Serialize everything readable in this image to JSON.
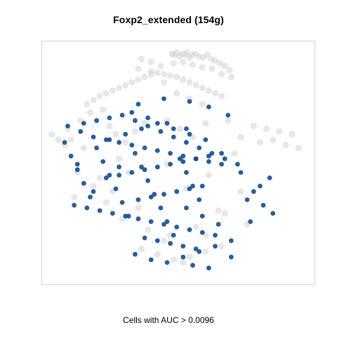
{
  "chart_data": {
    "type": "scatter",
    "title": "Foxp2_extended (154g)",
    "xlabel": "Cells with AUC > 0.0096",
    "ylabel": "",
    "grid": false,
    "legend": "none",
    "series": [
      {
        "role": "cells below threshold",
        "color": "#d3d3d3",
        "x": [
          0.45,
          0.52,
          0.6,
          0.68,
          0.76,
          0.85,
          0.92,
          1.0,
          1.08,
          1.18,
          1.3,
          1.42,
          1.55,
          1.68,
          1.8,
          1.95,
          2.1,
          2.25,
          0.5,
          0.8,
          1.1,
          1.4,
          1.7,
          2.0,
          2.3,
          -0.5,
          -0.2,
          0.1,
          -2.2,
          -2.0,
          -1.8,
          -1.6,
          -1.4,
          -1.2,
          -1.0,
          -0.8,
          -0.6,
          -0.4,
          -0.2,
          0.0,
          0.2,
          0.4,
          0.6,
          0.8,
          1.0,
          1.2,
          1.4,
          1.6,
          1.8,
          2.0,
          -0.6,
          -0.2,
          0.2,
          0.6,
          1.0,
          1.4,
          -2.8,
          -2.7,
          -2.4,
          -2.1,
          -1.7,
          -1.5,
          -1.3,
          -1.0,
          -0.7,
          -0.4,
          0.3,
          0.7,
          1.1,
          1.5,
          2.2,
          2.6,
          3.0,
          3.4,
          3.8,
          4.2,
          4.4,
          3.2,
          3.6,
          4.0,
          2.4,
          -2.9,
          -3.1,
          -3.3,
          -2.5,
          -2.0,
          -1.6,
          -1.1,
          -0.3,
          0.4,
          1.2,
          1.9,
          2.6,
          -0.5,
          0.0,
          0.5,
          1.0,
          1.5,
          2.0,
          -1.2,
          -1.8,
          -2.3,
          -2.6,
          -0.9,
          0.3,
          0.9,
          1.6,
          2.1,
          2.8,
          -1.4,
          -0.6,
          0.2,
          0.8,
          1.5
        ],
        "y": [
          4.05,
          4.0,
          4.1,
          3.95,
          4.05,
          4.0,
          4.1,
          3.9,
          4.0,
          4.05,
          3.95,
          3.9,
          4.0,
          3.85,
          3.8,
          3.7,
          3.6,
          3.45,
          3.7,
          3.75,
          3.65,
          3.55,
          3.5,
          3.3,
          3.2,
          3.85,
          3.75,
          3.6,
          2.2,
          2.35,
          2.5,
          2.6,
          2.7,
          2.8,
          2.9,
          3.0,
          3.1,
          3.2,
          3.3,
          3.35,
          3.3,
          3.25,
          3.2,
          3.1,
          3.0,
          2.9,
          2.8,
          2.7,
          2.6,
          2.5,
          3.5,
          3.4,
          3.0,
          2.6,
          2.4,
          2.2,
          1.3,
          0.9,
          1.6,
          1.9,
          2.0,
          1.4,
          1.1,
          0.8,
          1.2,
          1.5,
          1.6,
          1.3,
          1.0,
          1.5,
          1.6,
          1.0,
          1.4,
          1.3,
          1.2,
          1.1,
          0.6,
          0.8,
          0.9,
          0.7,
          0.4,
          0.7,
          0.9,
          1.1,
          -0.3,
          -0.8,
          -1.4,
          -2.0,
          -2.4,
          -2.6,
          -2.3,
          -1.7,
          -1.0,
          -3.1,
          -3.3,
          -3.5,
          -3.4,
          -3.2,
          -3.0,
          0.2,
          -0.5,
          0.6,
          -1.2,
          -0.3,
          0.0,
          -0.9,
          -0.4,
          -1.8,
          -2.2,
          -1.0,
          -1.6,
          -2.8,
          -3.6,
          -2.6
        ]
      },
      {
        "role": "cells with AUC > 0.0096",
        "color": "#0f4c8f",
        "x": [
          -2.9,
          -2.7,
          -2.5,
          -2.3,
          -2.1,
          -1.9,
          -1.7,
          -1.5,
          -1.3,
          -1.1,
          -0.9,
          -0.7,
          -0.5,
          -0.3,
          -0.1,
          0.1,
          0.3,
          0.5,
          0.7,
          0.9,
          1.1,
          1.3,
          -2.8,
          -2.4,
          -2.0,
          -1.6,
          -1.2,
          -0.8,
          -0.4,
          0.0,
          0.4,
          0.8,
          1.2,
          1.6,
          2.0,
          -2.6,
          -2.2,
          -1.8,
          -1.4,
          -1.0,
          -0.6,
          -0.2,
          0.2,
          0.6,
          1.0,
          1.4,
          1.8,
          -2.3,
          -1.9,
          -1.5,
          -1.1,
          -0.7,
          -0.3,
          0.1,
          0.5,
          0.9,
          1.3,
          1.7,
          2.1,
          2.5,
          -1.6,
          -1.2,
          -0.8,
          -0.4,
          0.0,
          0.4,
          0.8,
          1.2,
          1.6,
          2.0,
          -0.6,
          -0.2,
          0.2,
          0.6,
          1.0,
          1.4,
          -0.4,
          0.0,
          0.4,
          0.8,
          1.2,
          -0.6,
          0.2,
          1.0,
          1.6,
          2.2,
          2.6,
          3.0,
          3.3,
          3.6,
          2.8,
          3.2,
          3.5,
          -0.7,
          -0.2,
          0.3,
          0.8,
          1.3,
          1.8,
          2.3,
          -1.5,
          -1.0,
          -0.5,
          0.0,
          0.5,
          1.0,
          1.5,
          0.9,
          1.4,
          1.9,
          1.1,
          1.6,
          2.3,
          2.9,
          -0.8,
          -0.3,
          0.3,
          0.9,
          -2.0,
          -2.5,
          -1.2
        ],
        "y": [
          0.8,
          0.3,
          -0.2,
          -0.7,
          -1.2,
          0.6,
          0.1,
          -0.4,
          -0.9,
          -1.4,
          -1.9,
          0.4,
          -0.1,
          -0.6,
          -1.1,
          -1.6,
          -2.1,
          -2.6,
          0.2,
          -0.3,
          -0.8,
          -1.3,
          1.4,
          1.2,
          1.0,
          0.9,
          0.8,
          0.7,
          0.6,
          0.5,
          0.4,
          0.3,
          0.2,
          0.1,
          0.0,
          -1.5,
          -1.6,
          -1.7,
          -1.8,
          -1.9,
          -2.0,
          -2.1,
          -2.2,
          -2.3,
          -2.4,
          -2.5,
          -2.6,
          1.5,
          1.6,
          1.7,
          1.8,
          1.6,
          1.4,
          1.2,
          1.0,
          0.8,
          0.6,
          0.4,
          0.2,
          0.0,
          -0.5,
          -0.4,
          -0.3,
          -0.2,
          -0.1,
          0.0,
          0.1,
          0.2,
          0.3,
          0.4,
          -1.3,
          -1.2,
          -1.1,
          -1.0,
          -0.9,
          -0.8,
          -2.7,
          -2.8,
          -2.9,
          -3.0,
          -3.1,
          2.2,
          2.4,
          2.3,
          2.1,
          1.8,
          -0.3,
          -1.0,
          -1.5,
          -1.8,
          -1.3,
          -0.8,
          -0.5,
          -3.3,
          -3.5,
          -3.6,
          -3.4,
          -3.2,
          -3.0,
          -2.8,
          0.9,
          1.1,
          1.3,
          1.5,
          1.3,
          1.1,
          0.9,
          -1.6,
          -1.9,
          -2.2,
          -3.7,
          -3.8,
          -3.4,
          -2.1,
          1.9,
          1.7,
          1.5,
          1.3,
          -1.0,
          0.0,
          -0.1
        ]
      }
    ],
    "xlim": [
      -3.6,
      4.9
    ],
    "ylim": [
      -4.4,
      4.5
    ]
  }
}
